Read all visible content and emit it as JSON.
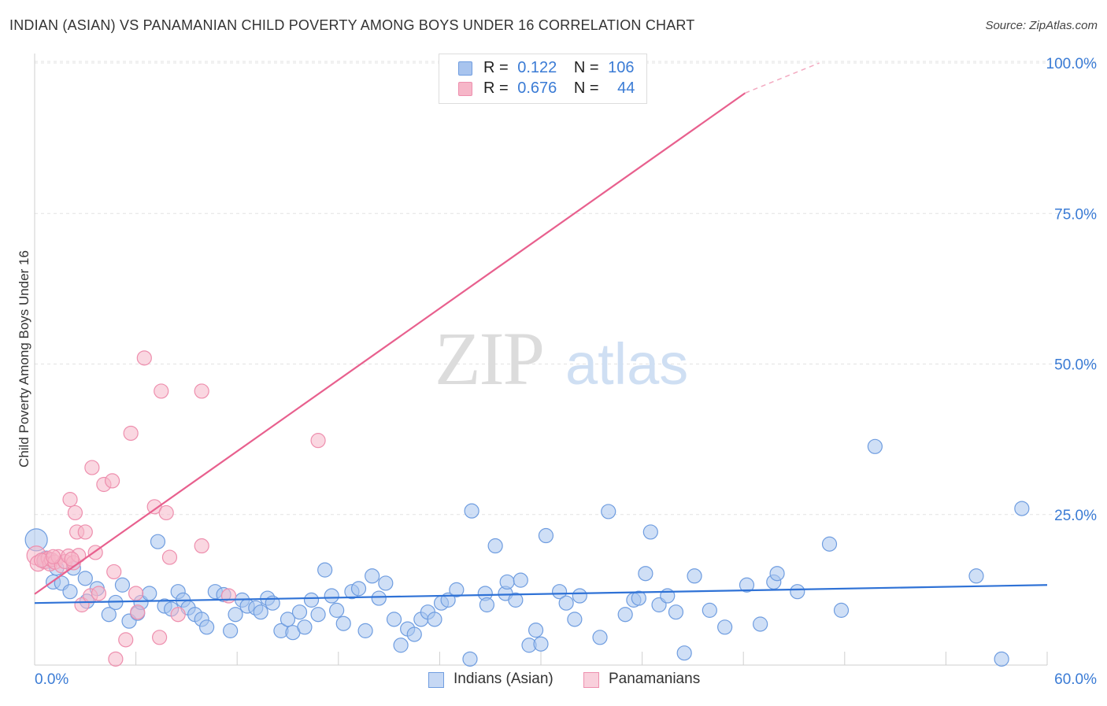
{
  "title": "INDIAN (ASIAN) VS PANAMANIAN CHILD POVERTY AMONG BOYS UNDER 16 CORRELATION CHART",
  "source": "Source: ZipAtlas.com",
  "watermark": {
    "zip": "ZIP",
    "atlas": "atlas"
  },
  "legend": {
    "rows": [
      {
        "r_label": "R =",
        "r_value": "0.122",
        "n_label": "N =",
        "n_value": "106",
        "color": "#a8c4ee"
      },
      {
        "r_label": "R =",
        "r_value": "0.676",
        "n_label": "N =",
        "n_value": "44",
        "color": "#f6b6c8"
      }
    ]
  },
  "bottom_legend": [
    {
      "label": "Indians (Asian)",
      "color": "#a8c4ee"
    },
    {
      "label": "Panamanians",
      "color": "#f6b6c8"
    }
  ],
  "colors": {
    "blue_fill": "#a8c4ee",
    "blue_stroke": "#6f9de0",
    "blue_line": "#2f72d6",
    "pink_fill": "#f6b6c8",
    "pink_stroke": "#ee8fae",
    "pink_line": "#e8608e",
    "axis_text": "#3a7bd5"
  },
  "chart_data": {
    "type": "scatter",
    "title": "INDIAN (ASIAN) VS PANAMANIAN CHILD POVERTY AMONG BOYS UNDER 16 CORRELATION CHART",
    "xlabel": "",
    "ylabel": "Child Poverty Among Boys Under 16",
    "xlim": [
      0,
      60
    ],
    "ylim": [
      0,
      100
    ],
    "x_tick_labels": [
      "0.0%",
      "60.0%"
    ],
    "y_tick_labels": [
      "100.0%",
      "75.0%",
      "50.0%",
      "25.0%"
    ],
    "y_ticks": [
      100,
      75,
      50,
      25
    ],
    "x_ticks": [
      0,
      6,
      12,
      18,
      24,
      30,
      36,
      42,
      48,
      54,
      60
    ],
    "grid": "horizontal dashed",
    "legend_position": "top-center",
    "series": [
      {
        "name": "Indians (Asian)",
        "r": 0.122,
        "n": 106,
        "trend": {
          "x": [
            0,
            60
          ],
          "y": [
            10.3,
            13.3
          ]
        },
        "points": [
          [
            0.1,
            20.8,
            14
          ],
          [
            0.7,
            17.5,
            11
          ],
          [
            1.1,
            13.8,
            9
          ],
          [
            1.3,
            16.1,
            9
          ],
          [
            1.6,
            13.6,
            9
          ],
          [
            2.1,
            12.2,
            9
          ],
          [
            2.3,
            16.1,
            9
          ],
          [
            3.0,
            14.4,
            9
          ],
          [
            3.1,
            10.6,
            9
          ],
          [
            3.7,
            12.7,
            9
          ],
          [
            4.4,
            8.4,
            9
          ],
          [
            4.8,
            10.4,
            9
          ],
          [
            5.2,
            13.3,
            9
          ],
          [
            5.6,
            7.3,
            9
          ],
          [
            6.1,
            8.6,
            9
          ],
          [
            6.3,
            10.4,
            9
          ],
          [
            6.8,
            11.9,
            9
          ],
          [
            7.3,
            20.5,
            9
          ],
          [
            7.7,
            9.8,
            9
          ],
          [
            8.1,
            9.3,
            9
          ],
          [
            8.5,
            12.2,
            9
          ],
          [
            8.8,
            10.8,
            9
          ],
          [
            9.1,
            9.5,
            9
          ],
          [
            9.5,
            8.4,
            9
          ],
          [
            9.9,
            7.6,
            9
          ],
          [
            10.2,
            6.3,
            9
          ],
          [
            10.7,
            12.2,
            9
          ],
          [
            11.2,
            11.7,
            9
          ],
          [
            11.6,
            5.7,
            9
          ],
          [
            11.9,
            8.4,
            9
          ],
          [
            12.3,
            10.8,
            9
          ],
          [
            12.6,
            9.8,
            9
          ],
          [
            13.1,
            9.5,
            9
          ],
          [
            13.4,
            8.8,
            9
          ],
          [
            13.8,
            11.1,
            9
          ],
          [
            14.1,
            10.3,
            9
          ],
          [
            14.6,
            5.7,
            9
          ],
          [
            15.0,
            7.6,
            9
          ],
          [
            15.3,
            5.4,
            9
          ],
          [
            15.7,
            8.8,
            9
          ],
          [
            16.0,
            6.3,
            9
          ],
          [
            16.4,
            10.8,
            9
          ],
          [
            16.8,
            8.4,
            9
          ],
          [
            17.2,
            15.8,
            9
          ],
          [
            17.6,
            11.5,
            9
          ],
          [
            17.9,
            9.1,
            9
          ],
          [
            18.3,
            6.9,
            9
          ],
          [
            18.8,
            12.2,
            9
          ],
          [
            19.2,
            12.7,
            9
          ],
          [
            19.6,
            5.7,
            9
          ],
          [
            20.0,
            14.8,
            9
          ],
          [
            20.4,
            11.1,
            9
          ],
          [
            20.8,
            13.6,
            9
          ],
          [
            21.3,
            7.6,
            9
          ],
          [
            21.7,
            3.3,
            9
          ],
          [
            22.1,
            6.0,
            9
          ],
          [
            22.5,
            5.1,
            9
          ],
          [
            22.9,
            7.6,
            9
          ],
          [
            23.3,
            8.8,
            9
          ],
          [
            23.7,
            7.6,
            9
          ],
          [
            24.1,
            10.3,
            9
          ],
          [
            24.5,
            10.8,
            9
          ],
          [
            25.0,
            12.5,
            9
          ],
          [
            25.8,
            1.0,
            9
          ],
          [
            25.9,
            25.6,
            9
          ],
          [
            26.7,
            11.9,
            9
          ],
          [
            26.8,
            10.0,
            9
          ],
          [
            27.3,
            19.8,
            9
          ],
          [
            27.9,
            11.9,
            9
          ],
          [
            28.0,
            13.8,
            9
          ],
          [
            28.5,
            10.8,
            9
          ],
          [
            28.8,
            14.1,
            9
          ],
          [
            29.3,
            3.3,
            9
          ],
          [
            29.7,
            5.8,
            9
          ],
          [
            30.0,
            3.5,
            9
          ],
          [
            30.3,
            21.5,
            9
          ],
          [
            31.1,
            12.2,
            9
          ],
          [
            31.5,
            10.3,
            9
          ],
          [
            32.0,
            7.6,
            9
          ],
          [
            32.3,
            11.5,
            9
          ],
          [
            33.5,
            4.6,
            9
          ],
          [
            34.0,
            25.5,
            9
          ],
          [
            35.0,
            8.4,
            9
          ],
          [
            35.5,
            10.8,
            9
          ],
          [
            35.8,
            11.1,
            9
          ],
          [
            36.2,
            15.2,
            9
          ],
          [
            36.5,
            22.1,
            9
          ],
          [
            37.0,
            10.0,
            9
          ],
          [
            37.5,
            11.5,
            9
          ],
          [
            38.0,
            8.8,
            9
          ],
          [
            38.5,
            2.0,
            9
          ],
          [
            39.1,
            14.8,
            9
          ],
          [
            40.0,
            9.1,
            9
          ],
          [
            40.9,
            6.3,
            9
          ],
          [
            42.2,
            13.3,
            9
          ],
          [
            43.0,
            6.8,
            9
          ],
          [
            43.8,
            13.8,
            9
          ],
          [
            44.0,
            15.2,
            9
          ],
          [
            45.2,
            12.2,
            9
          ],
          [
            47.1,
            20.1,
            9
          ],
          [
            47.8,
            9.1,
            9
          ],
          [
            49.8,
            36.3,
            9
          ],
          [
            55.8,
            14.8,
            9
          ],
          [
            57.3,
            1.0,
            9
          ],
          [
            58.5,
            26.0,
            9
          ]
        ]
      },
      {
        "name": "Panamanians",
        "r": 0.676,
        "n": 44,
        "trend": {
          "x": [
            0,
            42.1
          ],
          "y": [
            11.8,
            95.0
          ]
        },
        "trend_dashed": {
          "x": [
            42.1,
            46.5
          ],
          "y": [
            95.0,
            100.0
          ]
        },
        "points": [
          [
            0.1,
            18.2,
            12
          ],
          [
            0.2,
            16.9,
            10
          ],
          [
            0.6,
            17.3,
            10
          ],
          [
            0.8,
            17.7,
            9
          ],
          [
            0.9,
            16.8,
            9
          ],
          [
            1.0,
            17.5,
            9
          ],
          [
            1.2,
            17.1,
            9
          ],
          [
            1.4,
            18.0,
            9
          ],
          [
            1.6,
            16.5,
            9
          ],
          [
            1.8,
            17.2,
            9
          ],
          [
            2.0,
            18.1,
            9
          ],
          [
            2.1,
            27.5,
            9
          ],
          [
            2.3,
            17.0,
            9
          ],
          [
            2.4,
            25.3,
            9
          ],
          [
            2.5,
            22.1,
            9
          ],
          [
            2.6,
            18.2,
            9
          ],
          [
            2.8,
            10.0,
            9
          ],
          [
            3.0,
            22.1,
            9
          ],
          [
            3.3,
            11.5,
            9
          ],
          [
            3.4,
            32.8,
            9
          ],
          [
            3.6,
            18.7,
            9
          ],
          [
            3.8,
            11.9,
            9
          ],
          [
            4.1,
            30.0,
            9
          ],
          [
            4.6,
            30.6,
            9
          ],
          [
            4.7,
            15.5,
            9
          ],
          [
            4.8,
            1.0,
            9
          ],
          [
            5.4,
            4.2,
            9
          ],
          [
            5.7,
            38.5,
            9
          ],
          [
            6.0,
            11.9,
            9
          ],
          [
            6.1,
            8.8,
            9
          ],
          [
            6.5,
            51.0,
            9
          ],
          [
            7.1,
            26.3,
            9
          ],
          [
            7.4,
            4.6,
            9
          ],
          [
            7.5,
            45.5,
            9
          ],
          [
            7.8,
            25.3,
            9
          ],
          [
            8.0,
            17.9,
            9
          ],
          [
            8.5,
            8.4,
            9
          ],
          [
            9.9,
            45.5,
            9
          ],
          [
            9.9,
            19.8,
            9
          ],
          [
            11.5,
            11.5,
            9
          ],
          [
            16.8,
            37.3,
            9
          ],
          [
            0.4,
            17.4,
            9
          ],
          [
            1.1,
            18.0,
            9
          ],
          [
            2.2,
            17.6,
            9
          ]
        ]
      }
    ]
  }
}
